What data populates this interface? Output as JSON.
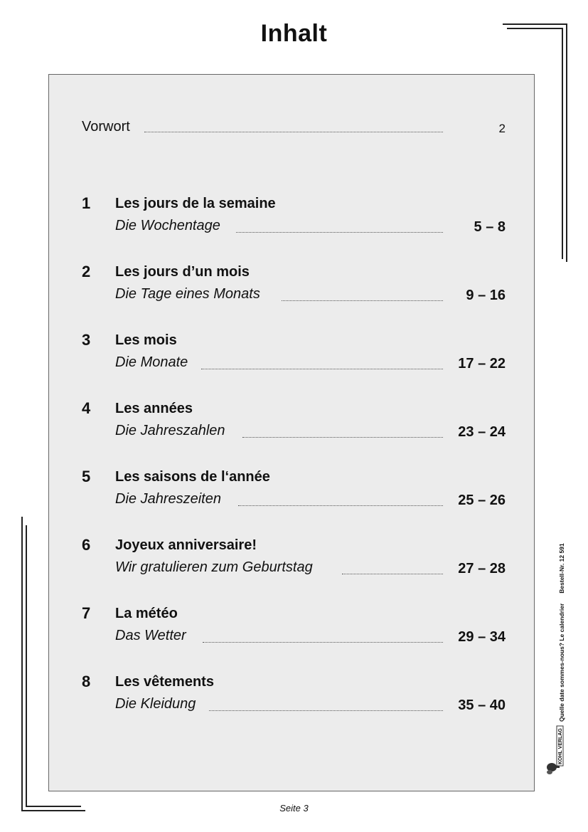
{
  "page_title": "Inhalt",
  "preface": {
    "label": "Vorwort",
    "page": "2"
  },
  "entries": [
    {
      "number": "1",
      "title_fr": "Les jours de la semaine",
      "title_de": "Die Wochentage",
      "pages": "5 – 8"
    },
    {
      "number": "2",
      "title_fr": "Les jours d’un mois",
      "title_de": "Die Tage eines Monats",
      "pages": "9 – 16"
    },
    {
      "number": "3",
      "title_fr": "Les mois",
      "title_de": "Die Monate",
      "pages": "17 – 22"
    },
    {
      "number": "4",
      "title_fr": "Les années",
      "title_de": "Die Jahreszahlen",
      "pages": "23 – 24"
    },
    {
      "number": "5",
      "title_fr": "Les saisons de l‘année",
      "title_de": "Die Jahreszeiten",
      "pages": "25 – 26"
    },
    {
      "number": "6",
      "title_fr": "Joyeux anniversaire!",
      "title_de": "Wir gratulieren zum Geburtstag",
      "pages": "27 – 28"
    },
    {
      "number": "7",
      "title_fr": "La météo",
      "title_de": "Das Wetter",
      "pages": "29 – 34"
    },
    {
      "number": "8",
      "title_fr": "Les vêtements",
      "title_de": "Die Kleidung",
      "pages": "35 – 40"
    }
  ],
  "footer": "Seite 3",
  "side": {
    "book_title": "Quelle date sommes-nous? Le calendrier",
    "order_number": "Bestell-Nr. 12 591",
    "publisher": "KOHL VERLAG",
    "logo_icon": "tree-logo-icon"
  }
}
